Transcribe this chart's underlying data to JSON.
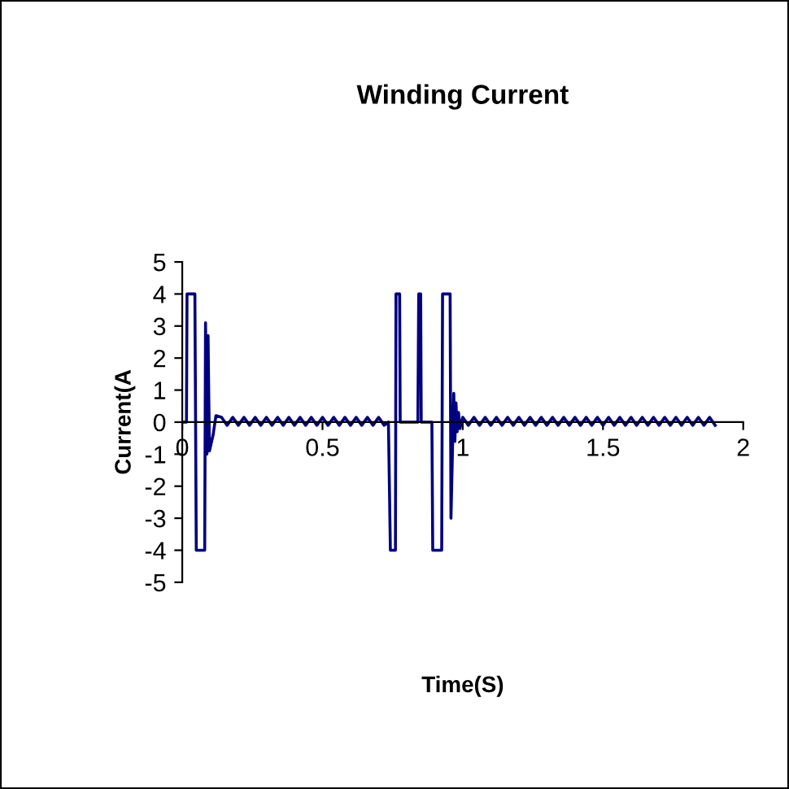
{
  "chart_data": {
    "type": "line",
    "title": "Winding Current",
    "xlabel": "Time(S)",
    "ylabel": "Current(A",
    "xlim": [
      0,
      2
    ],
    "xticks": [
      0,
      0.5,
      1,
      1.5,
      2
    ],
    "ylim": [
      -5,
      5
    ],
    "yticks": [
      -5,
      -4,
      -3,
      -2,
      -1,
      0,
      1,
      2,
      3,
      4,
      5
    ],
    "grid": false,
    "marker": "none",
    "line_style": "solid",
    "series": [
      {
        "color": "#000080",
        "x": [
          0,
          0.015,
          0.017,
          0.045,
          0.05,
          0.08,
          0.083,
          0.088,
          0.092,
          0.097,
          0.11,
          0.12,
          0.14,
          0.16,
          0.18,
          0.2,
          0.22,
          0.24,
          0.26,
          0.28,
          0.3,
          0.32,
          0.34,
          0.36,
          0.38,
          0.4,
          0.42,
          0.44,
          0.46,
          0.48,
          0.5,
          0.52,
          0.54,
          0.56,
          0.58,
          0.6,
          0.62,
          0.64,
          0.66,
          0.68,
          0.7,
          0.72,
          0.735,
          0.742,
          0.76,
          0.762,
          0.775,
          0.777,
          0.84,
          0.843,
          0.85,
          0.852,
          0.89,
          0.893,
          0.925,
          0.928,
          0.955,
          0.958,
          0.968,
          0.972,
          0.976,
          0.98,
          0.985,
          0.99,
          1.0,
          1.02,
          1.04,
          1.06,
          1.08,
          1.1,
          1.12,
          1.14,
          1.16,
          1.18,
          1.2,
          1.22,
          1.24,
          1.26,
          1.28,
          1.3,
          1.32,
          1.34,
          1.36,
          1.38,
          1.4,
          1.42,
          1.44,
          1.46,
          1.48,
          1.5,
          1.52,
          1.54,
          1.56,
          1.58,
          1.6,
          1.62,
          1.64,
          1.66,
          1.68,
          1.7,
          1.72,
          1.74,
          1.76,
          1.78,
          1.8,
          1.82,
          1.84,
          1.86,
          1.88,
          1.9
        ],
        "values": [
          0,
          0,
          4,
          4,
          -4,
          -4,
          3.1,
          -1,
          2.7,
          -0.9,
          -0.4,
          0.2,
          0.15,
          -0.1,
          0.15,
          -0.1,
          0.15,
          -0.1,
          0.15,
          -0.1,
          0.15,
          -0.1,
          0.15,
          -0.1,
          0.15,
          -0.1,
          0.15,
          -0.1,
          0.15,
          -0.1,
          0.15,
          -0.1,
          0.15,
          -0.1,
          0.15,
          -0.1,
          0.15,
          -0.1,
          0.15,
          -0.1,
          0.15,
          -0.1,
          0,
          -4,
          -4,
          4,
          4,
          0,
          0,
          4,
          4,
          0,
          0,
          -4,
          -4,
          4,
          4,
          -3,
          0.9,
          -0.6,
          0.6,
          -0.3,
          0.3,
          -0.2,
          0.15,
          -0.1,
          0.15,
          -0.1,
          0.15,
          -0.1,
          0.15,
          -0.1,
          0.15,
          -0.1,
          0.15,
          -0.1,
          0.15,
          -0.1,
          0.15,
          -0.1,
          0.15,
          -0.1,
          0.15,
          -0.1,
          0.15,
          -0.1,
          0.15,
          -0.1,
          0.15,
          -0.1,
          0.15,
          -0.1,
          0.15,
          -0.1,
          0.15,
          -0.1,
          0.15,
          -0.1,
          0.15,
          -0.1,
          0.15,
          -0.1,
          0.15,
          -0.1,
          0.15,
          -0.1,
          0.15,
          -0.1,
          0.15,
          -0.1
        ]
      }
    ]
  }
}
